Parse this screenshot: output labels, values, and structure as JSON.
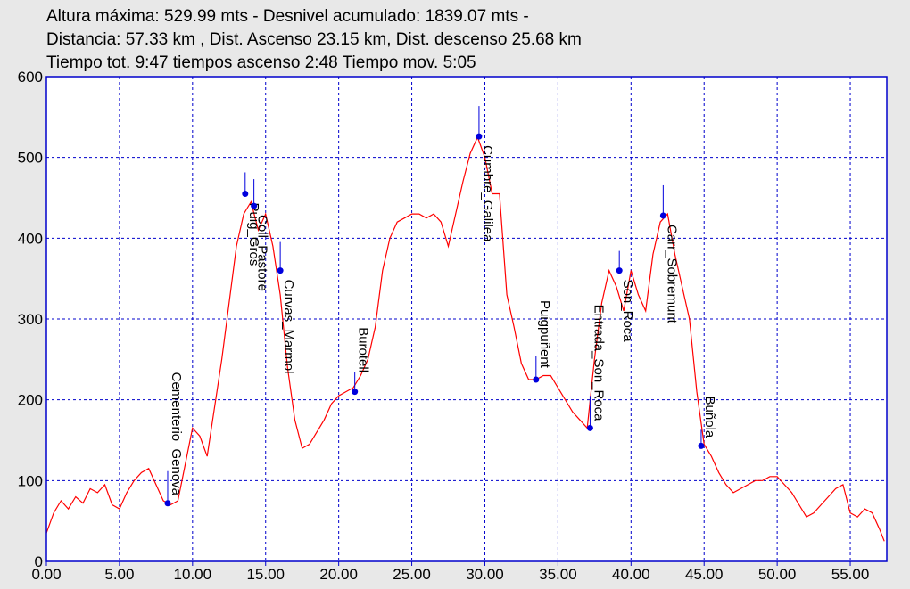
{
  "header": {
    "line1": "Altura máxima: 529.99 mts -  Desnivel acumulado: 1839.07 mts -",
    "line2": "Distancia: 57.33 km , Dist. Ascenso 23.15 km,  Dist. descenso 25.68 km",
    "line3": "Tiempo tot. 9:47    tiempos ascenso 2:48 Tiempo mov. 5:05"
  },
  "colors": {
    "background": "#e8e8e8",
    "plot_background": "#ffffff",
    "frame": "#0000cc",
    "grid": "#0000cc",
    "profile": "#ff0000",
    "waypoint": "#0000dd",
    "waypoint_line": "#0000dd"
  },
  "chart_data": {
    "type": "line",
    "xlim": [
      0,
      57.5
    ],
    "ylim": [
      0,
      600
    ],
    "x_ticks": [
      "0.00",
      "5.00",
      "10.00",
      "15.00",
      "20.00",
      "25.00",
      "30.00",
      "35.00",
      "40.00",
      "45.00",
      "50.00",
      "55.00"
    ],
    "x_tick_values": [
      0,
      5,
      10,
      15,
      20,
      25,
      30,
      35,
      40,
      45,
      50,
      55
    ],
    "y_ticks": [
      "0",
      "100",
      "200",
      "300",
      "400",
      "500",
      "600"
    ],
    "y_tick_values": [
      0,
      100,
      200,
      300,
      400,
      500,
      600
    ],
    "grid": true,
    "series": [
      {
        "x": [
          0,
          0.5,
          1.0,
          1.5,
          2.0,
          2.5,
          3.0,
          3.5,
          4.0,
          4.5,
          5.0,
          5.5,
          6.0,
          6.5,
          7.0,
          7.5,
          8.0,
          8.5,
          9.0,
          9.5,
          10.0,
          10.5,
          11.0,
          11.5,
          12.0,
          12.5,
          13.0,
          13.5,
          14.0,
          14.5,
          15.0,
          15.5,
          16.0,
          16.5,
          17.0,
          17.5,
          18.0,
          18.5,
          19.0,
          19.5,
          20.0,
          20.5,
          21.0,
          21.5,
          22.0,
          22.5,
          23.0,
          23.5,
          24.0,
          24.5,
          25.0,
          25.5,
          26.0,
          26.5,
          27.0,
          27.5,
          28.0,
          28.5,
          29.0,
          29.5,
          30.0,
          30.5,
          31.0,
          31.5,
          32.0,
          32.5,
          33.0,
          33.5,
          34.0,
          34.5,
          35.0,
          35.5,
          36.0,
          36.5,
          37.0,
          37.5,
          38.0,
          38.5,
          39.0,
          39.5,
          40.0,
          40.5,
          41.0,
          41.5,
          42.0,
          42.5,
          43.0,
          43.5,
          44.0,
          44.5,
          45.0,
          45.5,
          46.0,
          46.5,
          47.0,
          47.5,
          48.0,
          48.5,
          49.0,
          49.5,
          50.0,
          50.5,
          51.0,
          51.5,
          52.0,
          52.5,
          53.0,
          53.5,
          54.0,
          54.5,
          55.0,
          55.5,
          56.0,
          56.5,
          57.0,
          57.33
        ],
        "y": [
          35,
          60,
          75,
          65,
          80,
          72,
          90,
          85,
          95,
          70,
          65,
          85,
          100,
          110,
          115,
          95,
          75,
          70,
          75,
          120,
          165,
          155,
          130,
          190,
          250,
          320,
          390,
          430,
          445,
          410,
          430,
          390,
          330,
          240,
          175,
          140,
          145,
          160,
          175,
          195,
          205,
          210,
          215,
          230,
          250,
          290,
          360,
          400,
          420,
          425,
          430,
          430,
          425,
          430,
          420,
          390,
          430,
          470,
          505,
          525,
          500,
          455,
          455,
          330,
          290,
          245,
          225,
          225,
          230,
          230,
          215,
          200,
          185,
          175,
          165,
          250,
          320,
          360,
          340,
          310,
          360,
          330,
          310,
          380,
          420,
          430,
          380,
          340,
          300,
          210,
          145,
          130,
          110,
          95,
          85,
          90,
          95,
          100,
          100,
          105,
          105,
          95,
          85,
          70,
          55,
          60,
          70,
          80,
          90,
          95,
          60,
          55,
          65,
          60,
          40,
          25
        ]
      }
    ],
    "waypoints": [
      {
        "label": "Cementerio_Genova",
        "x": 8.3,
        "y": 72
      },
      {
        "label": "Puig_Gros",
        "x": 13.6,
        "y": 455
      },
      {
        "label": "Coll_Pastore",
        "x": 14.2,
        "y": 440
      },
      {
        "label": "Curvas_Marmol",
        "x": 16.0,
        "y": 360
      },
      {
        "label": "Burotell",
        "x": 21.1,
        "y": 210
      },
      {
        "label": "Cumbre_Galilea",
        "x": 29.6,
        "y": 526
      },
      {
        "label": "Puigpuñent",
        "x": 33.5,
        "y": 225
      },
      {
        "label": "Entrada_Son_Roca",
        "x": 37.2,
        "y": 165
      },
      {
        "label": "Son_Roca",
        "x": 39.2,
        "y": 360
      },
      {
        "label": "Carr_Sobremunt",
        "x": 42.2,
        "y": 428
      },
      {
        "label": "Buñola",
        "x": 44.8,
        "y": 143
      }
    ]
  }
}
